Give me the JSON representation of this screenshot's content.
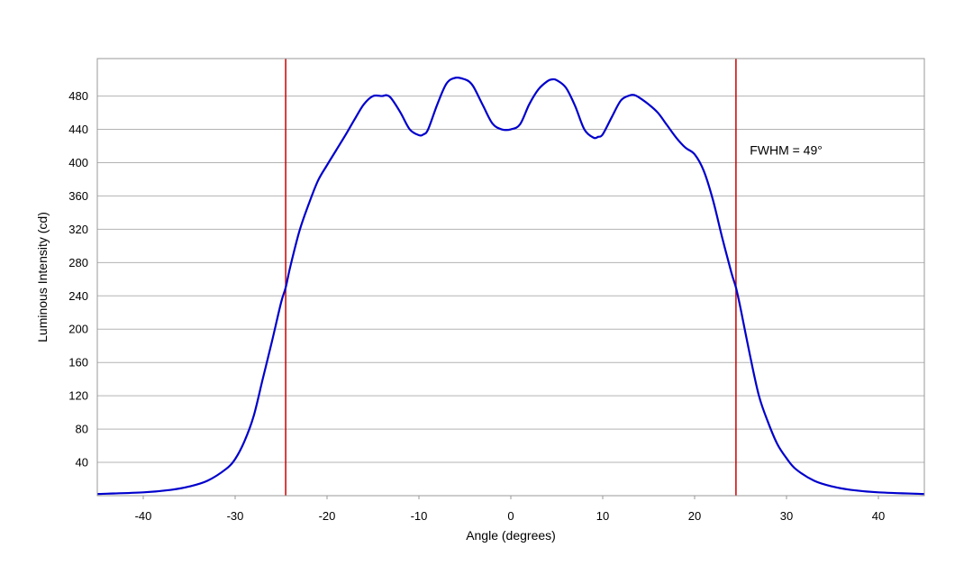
{
  "chart_data": {
    "type": "line",
    "title": "",
    "xlabel": "Angle (degrees)",
    "ylabel": "Luminous Intensity (cd)",
    "xlim": [
      -45,
      45
    ],
    "ylim": [
      0,
      525
    ],
    "x_ticks": [
      -40,
      -30,
      -20,
      -10,
      0,
      10,
      20,
      30,
      40
    ],
    "y_ticks": [
      40,
      80,
      120,
      160,
      200,
      240,
      280,
      320,
      360,
      400,
      440,
      480
    ],
    "grid": "horizontal",
    "legend": "none",
    "series": [
      {
        "color": "#0000cc",
        "x": [
          -45,
          -40,
          -37,
          -35,
          -33,
          -31,
          -30,
          -29,
          -28,
          -27,
          -26,
          -25,
          -24.5,
          -24,
          -23,
          -22,
          -21,
          -20,
          -19,
          -18,
          -17,
          -16,
          -15,
          -14,
          -13.5,
          -13,
          -12,
          -11,
          -10,
          -9.5,
          -9,
          -8,
          -7,
          -6,
          -5,
          -4.5,
          -4,
          -3,
          -2,
          -1,
          0,
          1,
          2,
          3,
          4,
          4.5,
          5,
          6,
          7,
          8,
          9,
          9.5,
          10,
          11,
          12,
          13,
          13.5,
          14,
          15,
          16,
          17,
          18,
          19,
          20,
          21,
          22,
          23,
          24,
          24.5,
          25,
          26,
          27,
          28,
          29,
          30,
          31,
          33,
          35,
          37,
          40,
          45
        ],
        "y": [
          2,
          4,
          7,
          11,
          18,
          32,
          44,
          65,
          95,
          140,
          185,
          232,
          250,
          275,
          318,
          350,
          378,
          397,
          415,
          433,
          452,
          470,
          480,
          480,
          481,
          477,
          460,
          440,
          433,
          434,
          440,
          470,
          495,
          502,
          500,
          497,
          490,
          468,
          447,
          440,
          440,
          446,
          470,
          488,
          498,
          500,
          499,
          490,
          468,
          440,
          430,
          431,
          434,
          455,
          475,
          481,
          481,
          478,
          470,
          460,
          445,
          430,
          418,
          410,
          390,
          355,
          310,
          268,
          250,
          225,
          170,
          120,
          88,
          62,
          45,
          32,
          18,
          11,
          7,
          4,
          2
        ]
      }
    ],
    "markers": [
      {
        "x": -24.5,
        "color": "#cc0000"
      },
      {
        "x": 24.5,
        "color": "#cc0000"
      }
    ],
    "annotation": {
      "text": "FWHM = 49°",
      "x": 26,
      "y": 415
    }
  }
}
